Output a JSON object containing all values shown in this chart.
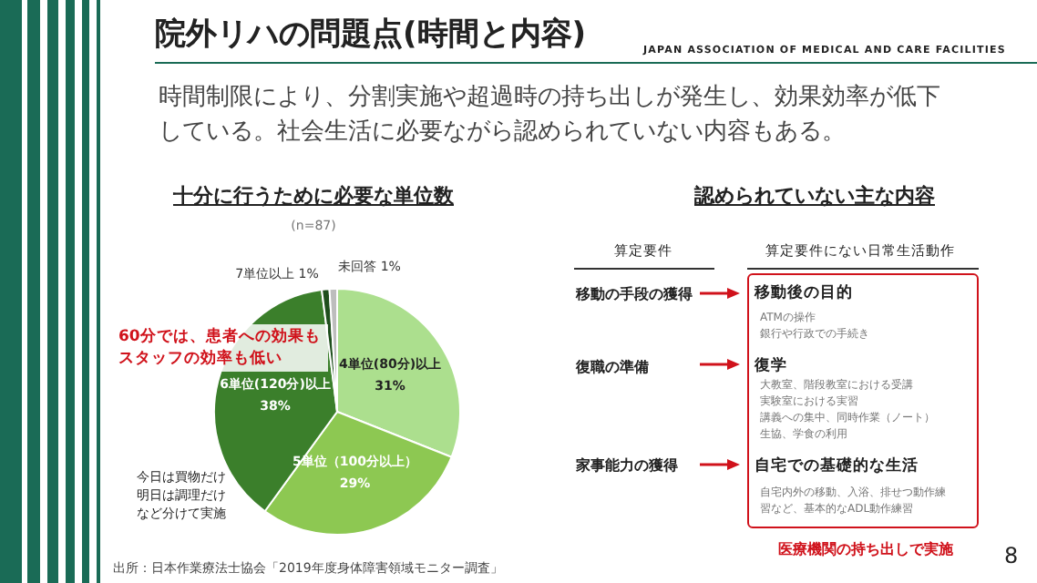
{
  "chart_data": {
    "type": "pie",
    "title": "院外リハの問題点(時間と内容)",
    "subtitle": "時間制限により、分割実施や超過時の持ち出しが発生し、効果効率が低下している。社会生活に必要ながら認められていない内容もある。",
    "categories": [
      "4単位(80分)以上",
      "5単位（100分以上）",
      "6単位(120分)以上",
      "7単位以上",
      "未回答"
    ],
    "values": [
      31,
      29,
      38,
      1,
      1
    ],
    "value_labels": [
      "31%",
      "29%",
      "38%",
      "1%",
      "1%"
    ],
    "colors": [
      "#acdf8e",
      "#8dc852",
      "#3b7f2b",
      "#1f4f1d",
      "#bdbdbd"
    ],
    "legend": false,
    "annotations": [
      "JAPAN ASSOCIATION OF MEDICAL AND CARE FACILITIES",
      "十分に行うために必要な単位数",
      "(n=87)",
      "60分では、患者への効果もスタッフの効率も低い",
      "今日は買物だけ明日は調理だけなど分けて実施",
      "認められていない主な内容",
      "算定要件",
      "算定要件にない日常生活動作",
      "移動の手段の獲得",
      "移動後の目的",
      "ATMの操作",
      "銀行や行政での手続き",
      "復職の準備",
      "復学",
      "大教室、階段教室における受講",
      "実験室における実習",
      "講義への集中、同時作業（ノート）",
      "生協、学食の利用",
      "家事能力の獲得",
      "自宅での基礎的な生活",
      "自宅内外の移動、入浴、排せつ動作練習など、基本的なADL動作練習",
      "医療機関の持ち出しで実施",
      "出所：日本作業療法士協会「2019年度身体障害領域モニター調査」",
      "8"
    ]
  }
}
